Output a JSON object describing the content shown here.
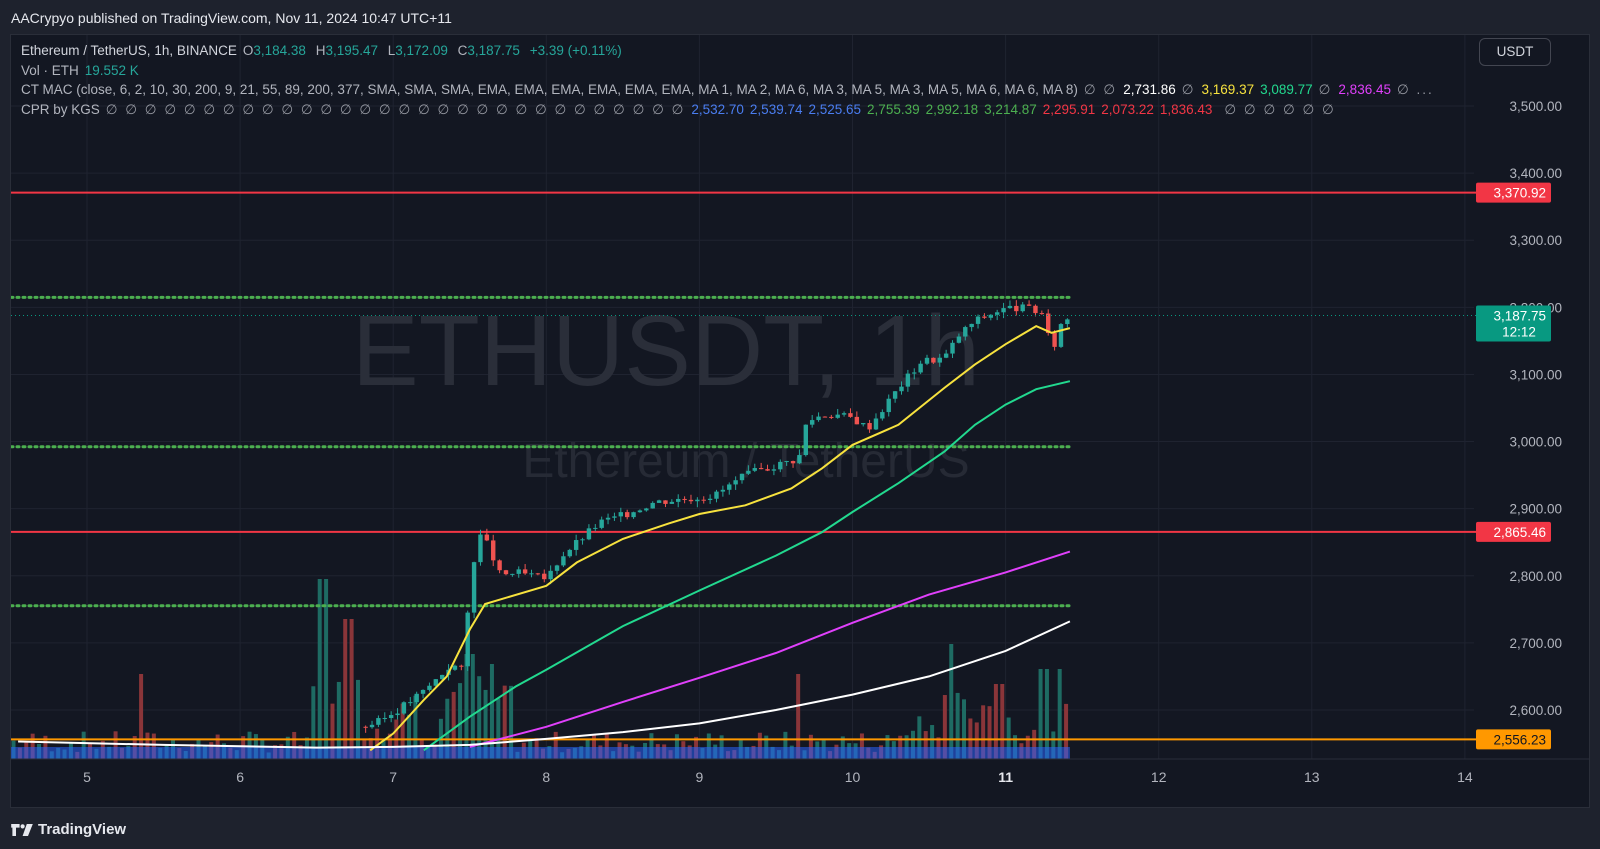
{
  "header": {
    "published_text": "AACrypyo published on TradingView.com, Nov 11, 2024 10:47 UTC+11"
  },
  "legend": {
    "symbol_title": "Ethereum / TetherUS, 1h, BINANCE",
    "ohlc": {
      "open_label": "O",
      "open": "3,184.38",
      "high_label": "H",
      "high": "3,195.47",
      "low_label": "L",
      "low": "3,172.09",
      "close_label": "C",
      "close": "3,187.75",
      "change": "+3.39 (+0.11%)"
    },
    "volume": {
      "label": "Vol · ETH",
      "value": "19.552 K"
    },
    "ct_mac": {
      "label": "CT MAC (close, 6, 2, 10, 30, 200, 9, 21, 55, 89, 200, 377, SMA, SMA, SMA, EMA, EMA, EMA, EMA, EMA, EMA, MA 1, MA 2, MA 6, MA 3, MA 5, MA 3, MA 5, MA 6, MA 6, MA 8)",
      "placeholders_a": "∅ ∅",
      "v1": "2,731.86",
      "v1_color": "#ffffff",
      "sep1": "∅",
      "v2": "3,169.37",
      "v2_color": "#f7e23e",
      "v3": "3,089.77",
      "v3_color": "#22d98f",
      "sep2": "∅",
      "v4": "2,836.45",
      "v4_color": "#e040fb",
      "sep3": "∅ ..."
    },
    "cpr": {
      "label": "CPR by KGS",
      "placeholders_a": "∅ ∅ ∅ ∅ ∅ ∅ ∅ ∅ ∅ ∅ ∅ ∅ ∅ ∅ ∅ ∅ ∅ ∅ ∅ ∅ ∅ ∅ ∅ ∅ ∅ ∅ ∅ ∅ ∅ ∅",
      "values": [
        {
          "v": "2,532.70",
          "color": "#4a7df0"
        },
        {
          "v": "2,539.74",
          "color": "#4a7df0"
        },
        {
          "v": "2,525.65",
          "color": "#4a7df0"
        },
        {
          "v": "2,755.39",
          "color": "#4caf50"
        },
        {
          "v": "2,992.18",
          "color": "#4caf50"
        },
        {
          "v": "3,214.87",
          "color": "#4caf50"
        },
        {
          "v": "2,295.91",
          "color": "#f23645"
        },
        {
          "v": "2,073.22",
          "color": "#f23645"
        },
        {
          "v": "1,836.43",
          "color": "#f23645"
        }
      ],
      "placeholders_b": "∅ ∅ ∅ ∅ ∅ ∅"
    }
  },
  "currency_button": "USDT",
  "watermark": {
    "main": "ETHUSDT, 1h",
    "sub": "Ethereum / TetherUS"
  },
  "price_axis": {
    "ticks": [
      "3,500.00",
      "3,400.00",
      "3,300.00",
      "3,200.00",
      "3,100.00",
      "3,000.00",
      "2,900.00",
      "2,800.00",
      "2,700.00",
      "2,600.00"
    ],
    "tick_values": [
      3500,
      3400,
      3300,
      3200,
      3100,
      3000,
      2900,
      2800,
      2700,
      2600
    ]
  },
  "time_axis": {
    "labels": [
      "5",
      "6",
      "7",
      "8",
      "9",
      "10",
      "11",
      "12",
      "13",
      "14"
    ],
    "bold_label": "11"
  },
  "horizontal_levels": [
    {
      "price": 3370.92,
      "label": "3,370.92",
      "color": "#f23645",
      "style": "solid",
      "badge": true
    },
    {
      "price": 2865.46,
      "label": "2,865.46",
      "color": "#f23645",
      "style": "solid",
      "badge": true
    },
    {
      "price": 2556.23,
      "label": "2,556.23",
      "color": "#ff9800",
      "style": "solid",
      "badge": true
    },
    {
      "price": 3214.87,
      "color": "#4caf50",
      "style": "dotted",
      "badge": false
    },
    {
      "price": 2992.18,
      "color": "#4caf50",
      "style": "dotted",
      "badge": false
    },
    {
      "price": 2755.39,
      "color": "#4caf50",
      "style": "dotted",
      "badge": false
    }
  ],
  "last_price": {
    "value": "3,187.75",
    "countdown": "12:12",
    "price": 3187.75,
    "color": "#089981"
  },
  "colors": {
    "up": "#26a69a",
    "down": "#ef5350",
    "vol_up": "#1e6b63",
    "vol_down": "#8a3539",
    "ma_yellow": "#f7e23e",
    "ma_green": "#22d98f",
    "ma_magenta": "#e040fb",
    "ma_white": "#ffffff"
  },
  "footer": {
    "brand": "TradingView"
  },
  "chart_data": {
    "type": "candlestick",
    "timeframe": "1h",
    "x_axis_days": [
      5,
      6,
      7,
      8,
      9,
      10,
      11,
      12,
      13,
      14
    ],
    "ylim": [
      2525,
      3545
    ],
    "moving_averages": [
      {
        "color": "#f7e23e",
        "points": [
          [
            6.85,
            2540
          ],
          [
            7.0,
            2565
          ],
          [
            7.2,
            2615
          ],
          [
            7.35,
            2650
          ],
          [
            7.5,
            2720
          ],
          [
            7.6,
            2758
          ],
          [
            8.0,
            2785
          ],
          [
            8.2,
            2820
          ],
          [
            8.5,
            2855
          ],
          [
            8.8,
            2878
          ],
          [
            9.0,
            2892
          ],
          [
            9.3,
            2905
          ],
          [
            9.6,
            2930
          ],
          [
            9.8,
            2960
          ],
          [
            10.0,
            2995
          ],
          [
            10.3,
            3025
          ],
          [
            10.6,
            3080
          ],
          [
            10.8,
            3115
          ],
          [
            11.0,
            3145
          ],
          [
            11.2,
            3172
          ],
          [
            11.3,
            3162
          ],
          [
            11.42,
            3169
          ]
        ]
      },
      {
        "color": "#22d98f",
        "points": [
          [
            7.2,
            2540
          ],
          [
            7.5,
            2590
          ],
          [
            7.8,
            2635
          ],
          [
            8.0,
            2660
          ],
          [
            8.5,
            2725
          ],
          [
            9.0,
            2778
          ],
          [
            9.5,
            2830
          ],
          [
            9.8,
            2865
          ],
          [
            10.0,
            2895
          ],
          [
            10.3,
            2938
          ],
          [
            10.6,
            2985
          ],
          [
            10.8,
            3025
          ],
          [
            11.0,
            3055
          ],
          [
            11.2,
            3078
          ],
          [
            11.42,
            3090
          ]
        ]
      },
      {
        "color": "#e040fb",
        "points": [
          [
            7.5,
            2545
          ],
          [
            8.0,
            2575
          ],
          [
            8.5,
            2612
          ],
          [
            9.0,
            2648
          ],
          [
            9.5,
            2685
          ],
          [
            10.0,
            2730
          ],
          [
            10.5,
            2772
          ],
          [
            11.0,
            2805
          ],
          [
            11.42,
            2836
          ]
        ]
      },
      {
        "color": "#ffffff",
        "points": [
          [
            4.55,
            2553
          ],
          [
            5.5,
            2548
          ],
          [
            6.5,
            2544
          ],
          [
            7.0,
            2545
          ],
          [
            7.5,
            2548
          ],
          [
            8.0,
            2557
          ],
          [
            8.5,
            2567
          ],
          [
            9.0,
            2580
          ],
          [
            9.5,
            2600
          ],
          [
            10.0,
            2623
          ],
          [
            10.5,
            2650
          ],
          [
            11.0,
            2688
          ],
          [
            11.42,
            2732
          ]
        ]
      }
    ],
    "price_path": [
      [
        6.8,
        2575
      ],
      [
        6.9,
        2582
      ],
      [
        7.0,
        2596
      ],
      [
        7.1,
        2612
      ],
      [
        7.2,
        2628
      ],
      [
        7.3,
        2650
      ],
      [
        7.38,
        2668
      ],
      [
        7.45,
        2660
      ],
      [
        7.5,
        2775
      ],
      [
        7.55,
        2865
      ],
      [
        7.62,
        2845
      ],
      [
        7.7,
        2800
      ],
      [
        7.8,
        2805
      ],
      [
        7.9,
        2800
      ],
      [
        8.0,
        2795
      ],
      [
        8.1,
        2830
      ],
      [
        8.2,
        2850
      ],
      [
        8.35,
        2880
      ],
      [
        8.5,
        2890
      ],
      [
        8.7,
        2910
      ],
      [
        8.9,
        2915
      ],
      [
        9.1,
        2920
      ],
      [
        9.3,
        2950
      ],
      [
        9.5,
        2965
      ],
      [
        9.65,
        2975
      ],
      [
        9.7,
        3030
      ],
      [
        9.8,
        3040
      ],
      [
        9.9,
        3040
      ],
      [
        10.0,
        3035
      ],
      [
        10.1,
        3020
      ],
      [
        10.2,
        3050
      ],
      [
        10.3,
        3080
      ],
      [
        10.45,
        3120
      ],
      [
        10.6,
        3125
      ],
      [
        10.7,
        3160
      ],
      [
        10.8,
        3180
      ],
      [
        10.95,
        3195
      ],
      [
        11.05,
        3200
      ],
      [
        11.15,
        3198
      ],
      [
        11.25,
        3190
      ],
      [
        11.3,
        3130
      ],
      [
        11.36,
        3175
      ],
      [
        11.42,
        3188
      ]
    ]
  }
}
